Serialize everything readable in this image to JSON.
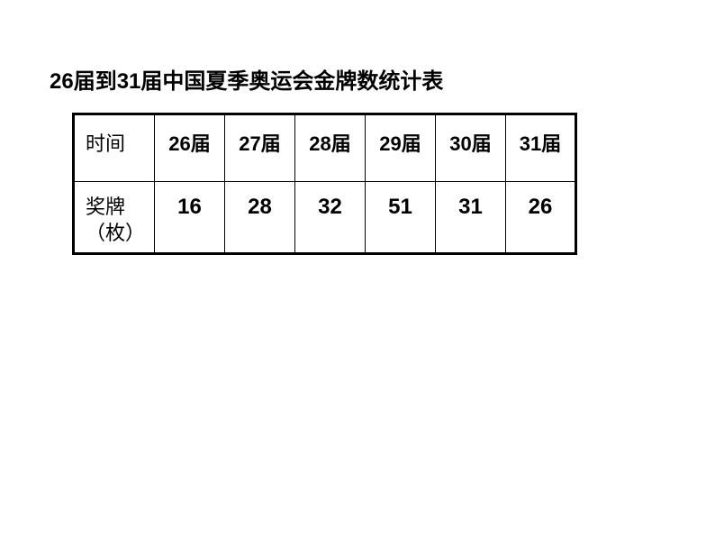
{
  "title": "26届到31届中国夏季奥运会金牌数统计表",
  "table": {
    "row_labels": {
      "time": "时间",
      "medals": "奖牌（枚）"
    },
    "sessions": [
      "26届",
      "27届",
      "28届",
      "29届",
      "30届",
      "31届"
    ],
    "values": [
      "16",
      "28",
      "32",
      "51",
      "31",
      "26"
    ],
    "border_color": "#000000",
    "outer_border_width": 3,
    "inner_border_width": 1.5,
    "background_color": "#ffffff",
    "text_color": "#000000",
    "header_fontsize": 22,
    "value_fontsize": 24,
    "title_fontsize": 24,
    "label_cell_width": 90,
    "data_cell_width": 78,
    "header_row_height": 75,
    "data_row_height": 80
  }
}
